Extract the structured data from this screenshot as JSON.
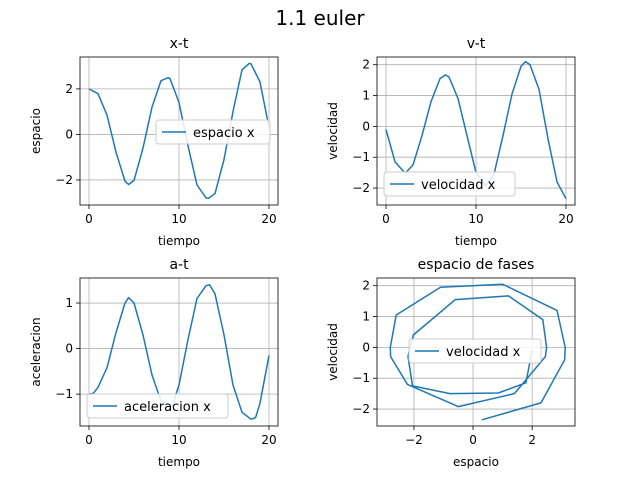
{
  "figure": {
    "title": "1.1 euler"
  },
  "colors": {
    "line": "#1f77b4",
    "grid": "#b0b0b0",
    "axes": "#000000",
    "legend_border": "#cccccc"
  },
  "chart_data": [
    {
      "id": "xt",
      "type": "line",
      "title": "x-t",
      "xlabel": "tiempo",
      "ylabel": "espacio",
      "xlim": [
        -1,
        21
      ],
      "ylim": [
        -3.1,
        3.4
      ],
      "xticks": [
        0,
        10,
        20
      ],
      "yticks": [
        -2,
        0,
        2
      ],
      "xtick_labels": [
        "0",
        "10",
        "20"
      ],
      "ytick_labels": [
        "−2",
        "0",
        "2"
      ],
      "grid": true,
      "legend": "center-right",
      "series": [
        {
          "name": "espacio x",
          "x": [
            0,
            1,
            2,
            3,
            4,
            4.4,
            5,
            6,
            7,
            8,
            8.8,
            9,
            10,
            11,
            12,
            13,
            13.3,
            14,
            15,
            16,
            17,
            17.8,
            18,
            19,
            20
          ],
          "y": [
            2,
            1.79,
            0.85,
            -0.78,
            -2.05,
            -2.2,
            -2.02,
            -0.6,
            1.2,
            2.36,
            2.49,
            2.45,
            1.4,
            -0.5,
            -2.22,
            -2.79,
            -2.8,
            -2.6,
            -1.1,
            1.0,
            2.84,
            3.12,
            3.1,
            2.3,
            0.3
          ]
        }
      ]
    },
    {
      "id": "vt",
      "type": "line",
      "title": "v-t",
      "xlabel": "tiempo",
      "ylabel": "velocidad",
      "xlim": [
        -1,
        21
      ],
      "ylim": [
        -2.55,
        2.25
      ],
      "xticks": [
        0,
        10,
        20
      ],
      "yticks": [
        -2,
        -1,
        0,
        1,
        2
      ],
      "xtick_labels": [
        "0",
        "10",
        "20"
      ],
      "ytick_labels": [
        "−2",
        "−1",
        "0",
        "1",
        "2"
      ],
      "grid": true,
      "legend": "lower-left",
      "series": [
        {
          "name": "velocidad x",
          "x": [
            0,
            1,
            2,
            2.2,
            3,
            4,
            5,
            6,
            6.6,
            7,
            8,
            9,
            10,
            11,
            11.1,
            12,
            13,
            14,
            15,
            15.5,
            16,
            17,
            18,
            19,
            20
          ],
          "y": [
            -0.1,
            -1.15,
            -1.48,
            -1.5,
            -1.25,
            -0.3,
            0.8,
            1.55,
            1.67,
            1.6,
            0.9,
            -0.3,
            -1.5,
            -1.92,
            -1.93,
            -1.55,
            -0.3,
            1.05,
            1.95,
            2.1,
            2.0,
            1.2,
            -0.4,
            -1.8,
            -2.35
          ]
        }
      ]
    },
    {
      "id": "at",
      "type": "line",
      "title": "a-t",
      "xlabel": "tiempo",
      "ylabel": "aceleracion",
      "xlim": [
        -1,
        21
      ],
      "ylim": [
        -1.7,
        1.55
      ],
      "xticks": [
        0,
        10,
        20
      ],
      "yticks": [
        -1,
        0,
        1
      ],
      "xtick_labels": [
        "0",
        "10",
        "20"
      ],
      "ytick_labels": [
        "−1",
        "0",
        "1"
      ],
      "grid": true,
      "legend": "lower-left",
      "series": [
        {
          "name": "aceleracion x",
          "x": [
            0,
            0.5,
            1,
            2,
            3,
            4,
            4.4,
            5,
            6,
            7,
            8,
            9,
            9.3,
            10,
            11,
            12,
            13,
            13.4,
            14,
            15,
            16,
            17,
            18,
            18.5,
            19,
            20
          ],
          "y": [
            -1.0,
            -0.98,
            -0.85,
            -0.42,
            0.35,
            1.0,
            1.12,
            1.0,
            0.3,
            -0.58,
            -1.15,
            -1.24,
            -1.22,
            -0.8,
            0.2,
            1.1,
            1.38,
            1.4,
            1.2,
            0.3,
            -0.8,
            -1.4,
            -1.55,
            -1.52,
            -1.2,
            -0.15
          ]
        }
      ]
    },
    {
      "id": "fases",
      "type": "line",
      "title": "espacio de fases",
      "xlabel": "espacio",
      "ylabel": "velocidad",
      "xlim": [
        -3.25,
        3.45
      ],
      "ylim": [
        -2.55,
        2.25
      ],
      "xticks": [
        -2,
        0,
        2
      ],
      "yticks": [
        -2,
        -1,
        0,
        1,
        2
      ],
      "xtick_labels": [
        "−2",
        "0",
        "2"
      ],
      "ytick_labels": [
        "−2",
        "−1",
        "0",
        "1",
        "2"
      ],
      "grid": true,
      "legend": "center-right",
      "series": [
        {
          "name": "velocidad x",
          "x": [
            2,
            1.79,
            0.85,
            -0.78,
            -2.05,
            -2.2,
            -2.02,
            -0.6,
            1.2,
            2.36,
            2.49,
            2.45,
            1.4,
            -0.5,
            -2.22,
            -2.79,
            -2.8,
            -2.6,
            -1.1,
            1.0,
            2.84,
            3.12,
            3.1,
            2.3,
            0.3
          ],
          "y": [
            -0.1,
            -1.15,
            -1.48,
            -1.5,
            -1.25,
            -0.3,
            0.4,
            1.55,
            1.67,
            0.9,
            0.0,
            -0.3,
            -1.5,
            -1.92,
            -1.2,
            -0.3,
            0.0,
            1.05,
            1.95,
            2.05,
            1.2,
            0.0,
            -0.4,
            -1.8,
            -2.35
          ]
        }
      ]
    }
  ]
}
